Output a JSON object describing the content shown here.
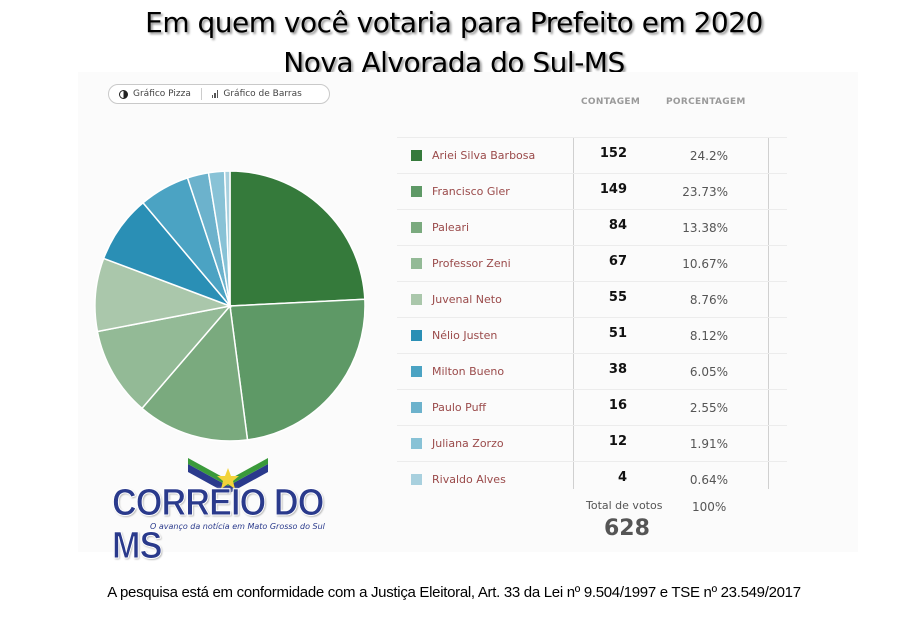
{
  "header": {
    "title_line1": "Em quem você votaria para Prefeito em 2020",
    "title_line2": "Nova Alvorada do Sul-MS"
  },
  "toggle": {
    "pie_label": "Gráfico Pizza",
    "bar_label": "Gráfico de Barras"
  },
  "table": {
    "col_count": "CONTAGEM",
    "col_percent": "PORCENTAGEM",
    "rows": [
      {
        "name": "Ariei Silva Barbosa",
        "count": "152",
        "percent": "24.2%",
        "color": "#357a3b"
      },
      {
        "name": "Francisco Gler",
        "count": "149",
        "percent": "23.73%",
        "color": "#5e9966"
      },
      {
        "name": "Paleari",
        "count": "84",
        "percent": "13.38%",
        "color": "#7aaa7e"
      },
      {
        "name": "Professor Zeni",
        "count": "67",
        "percent": "10.67%",
        "color": "#93ba96"
      },
      {
        "name": "Juvenal Neto",
        "count": "55",
        "percent": "8.76%",
        "color": "#aac7ab"
      },
      {
        "name": "Nélio Justen",
        "count": "51",
        "percent": "8.12%",
        "color": "#2a8fb5"
      },
      {
        "name": "Milton Bueno",
        "count": "38",
        "percent": "6.05%",
        "color": "#4ba3c3"
      },
      {
        "name": "Paulo Puff",
        "count": "16",
        "percent": "2.55%",
        "color": "#6cb2cc"
      },
      {
        "name": "Juliana Zorzo",
        "count": "12",
        "percent": "1.91%",
        "color": "#88c2d6"
      },
      {
        "name": "Rivaldo Alves",
        "count": "4",
        "percent": "0.64%",
        "color": "#a8d0de"
      }
    ],
    "total_label": "Total de votos",
    "total_value": "628",
    "total_percent": "100%"
  },
  "logo": {
    "text": "CORREIO DO MS",
    "tagline": "O avanço da notícia em Mato Grosso do Sul"
  },
  "footer": {
    "text": "A pesquisa está em conformidade com a Justiça Eleitoral, Art. 33 da Lei nº 9.504/1997 e TSE nº 23.549/2017"
  },
  "chart_data": {
    "type": "pie",
    "title": "Em quem você votaria para Prefeito em 2020 — Nova Alvorada do Sul-MS",
    "categories": [
      "Ariei Silva Barbosa",
      "Francisco Gler",
      "Paleari",
      "Professor Zeni",
      "Juvenal Neto",
      "Nélio Justen",
      "Milton Bueno",
      "Paulo Puff",
      "Juliana Zorzo",
      "Rivaldo Alves"
    ],
    "values": [
      152,
      149,
      84,
      67,
      55,
      51,
      38,
      16,
      12,
      4
    ],
    "percentages": [
      24.2,
      23.73,
      13.38,
      10.67,
      8.76,
      8.12,
      6.05,
      2.55,
      1.91,
      0.64
    ],
    "colors": [
      "#357a3b",
      "#5e9966",
      "#7aaa7e",
      "#93ba96",
      "#aac7ab",
      "#2a8fb5",
      "#4ba3c3",
      "#6cb2cc",
      "#88c2d6",
      "#a8d0de"
    ],
    "total": 628,
    "legend_position": "right"
  }
}
